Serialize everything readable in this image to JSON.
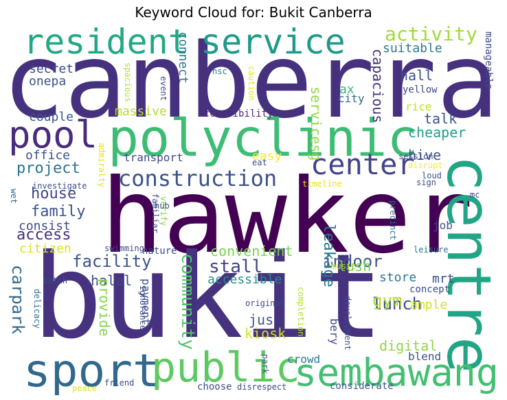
{
  "title": "Keyword Cloud for: Bukit Canberra",
  "chart_data": {
    "type": "wordcloud",
    "title": "Keyword Cloud for: Bukit Canberra",
    "words": [
      {
        "text": "canberra",
        "color": "#46317e"
      },
      {
        "text": "hawker",
        "color": "#440154"
      },
      {
        "text": "bukit",
        "color": "#46327e"
      },
      {
        "text": "centre",
        "color": "#21a585"
      },
      {
        "text": "polyclinic",
        "color": "#3dbc74"
      },
      {
        "text": "sport",
        "color": "#31688e"
      },
      {
        "text": "public",
        "color": "#5ec962"
      },
      {
        "text": "sembawang",
        "color": "#43bf71"
      },
      {
        "text": "resident",
        "color": "#22a884"
      },
      {
        "text": "service",
        "color": "#1f9a8a"
      },
      {
        "text": "pool",
        "color": "#472d7b"
      },
      {
        "text": "center",
        "color": "#414487"
      },
      {
        "text": "construction",
        "color": "#3b528b"
      },
      {
        "text": "activity",
        "color": "#a0da39"
      },
      {
        "text": "suitable",
        "color": "#2a788e"
      },
      {
        "text": "secret",
        "color": "#3e4a89"
      },
      {
        "text": "onepa",
        "color": "#3b528b"
      },
      {
        "text": "connect",
        "color": "#2a788e"
      },
      {
        "text": "capacious",
        "color": "#46327e"
      },
      {
        "text": "hall",
        "color": "#3b528b"
      },
      {
        "text": "massive",
        "color": "#b5de2b"
      },
      {
        "text": "accessibility",
        "color": "#482878"
      },
      {
        "text": "servicesg",
        "color": "#90d743"
      },
      {
        "text": "couple",
        "color": "#39568c"
      },
      {
        "text": "office",
        "color": "#3b528b"
      },
      {
        "text": "project",
        "color": "#2c728e"
      },
      {
        "text": "transport",
        "color": "#3e4a89"
      },
      {
        "text": "easy",
        "color": "#fde725"
      },
      {
        "text": "house",
        "color": "#414487"
      },
      {
        "text": "family",
        "color": "#3b528b"
      },
      {
        "text": "consist",
        "color": "#3e4a89"
      },
      {
        "text": "access",
        "color": "#472d7b"
      },
      {
        "text": "citizen",
        "color": "#d8e219"
      },
      {
        "text": "facility",
        "color": "#3b528b"
      },
      {
        "text": "convenient",
        "color": "#7ad151"
      },
      {
        "text": "stall",
        "color": "#414487"
      },
      {
        "text": "indoor",
        "color": "#3b528b"
      },
      {
        "text": "leakage",
        "color": "#2a788e"
      },
      {
        "text": "lush",
        "color": "#6ece58"
      },
      {
        "text": "lunch",
        "color": "#3e4a89"
      },
      {
        "text": "gym",
        "color": "#addc30"
      },
      {
        "text": "store",
        "color": "#2a788e"
      },
      {
        "text": "mrt",
        "color": "#3b528b"
      },
      {
        "text": "ample",
        "color": "#d2e21b"
      },
      {
        "text": "digital",
        "color": "#90d743"
      },
      {
        "text": "kiosk",
        "color": "#d2e21b"
      },
      {
        "text": "community",
        "color": "#50c46a"
      },
      {
        "text": "carpark",
        "color": "#31688e"
      },
      {
        "text": "halal",
        "color": "#3e4a89"
      },
      {
        "text": "payment",
        "color": "#3b528b"
      },
      {
        "text": "accessible",
        "color": "#21918c"
      },
      {
        "text": "provide",
        "color": "#84d44b"
      },
      {
        "text": "jus",
        "color": "#3b528b"
      },
      {
        "text": "bery",
        "color": "#3e4a89"
      },
      {
        "text": "crowd",
        "color": "#2a788e"
      },
      {
        "text": "blend",
        "color": "#3b528b"
      },
      {
        "text": "talk",
        "color": "#3b528b"
      },
      {
        "text": "cheaper",
        "color": "#1f9e89"
      },
      {
        "text": "hive",
        "color": "#3b528b"
      },
      {
        "text": "rice",
        "color": "#c2df23"
      },
      {
        "text": "ax",
        "color": "#35b779"
      },
      {
        "text": "city",
        "color": "#31688e"
      },
      {
        "text": "yellow",
        "color": "#3e4a89"
      },
      {
        "text": "manageable",
        "color": "#3e4a89"
      },
      {
        "text": "nsc",
        "color": "#2a788e"
      },
      {
        "text": "caution",
        "color": "#e5e419"
      },
      {
        "text": "event",
        "color": "#3e4a89"
      },
      {
        "text": "spacious",
        "color": "#b5de2b"
      },
      {
        "text": "admiralty",
        "color": "#e5e419"
      },
      {
        "text": "eat",
        "color": "#3e4a89"
      },
      {
        "text": "session",
        "color": "#3e4a89"
      },
      {
        "text": "disrupt",
        "color": "#fde725"
      },
      {
        "text": "loud",
        "color": "#3b528b"
      },
      {
        "text": "sign",
        "color": "#3e4a89"
      },
      {
        "text": "timeline",
        "color": "#e5e419"
      },
      {
        "text": "mc",
        "color": "#3e4a89"
      },
      {
        "text": "investigate",
        "color": "#3b528b"
      },
      {
        "text": "wet",
        "color": "#31688e"
      },
      {
        "text": "verify",
        "color": "#84d44b"
      },
      {
        "text": "familiar",
        "color": "#3e4a89"
      },
      {
        "text": "hub",
        "color": "#3e4a89"
      },
      {
        "text": "precinct",
        "color": "#31688e"
      },
      {
        "text": "job",
        "color": "#3b528b"
      },
      {
        "text": "swimming",
        "color": "#3e4a89"
      },
      {
        "text": "nature",
        "color": "#3e4a89"
      },
      {
        "text": "leisure",
        "color": "#2a788e"
      },
      {
        "text": "music",
        "color": "#b5de2b"
      },
      {
        "text": "concept",
        "color": "#3e4a89"
      },
      {
        "text": "patch",
        "color": "#3e4a89"
      },
      {
        "text": "delicacy",
        "color": "#2c728e"
      },
      {
        "text": "ignorance",
        "color": "#3e4a89"
      },
      {
        "text": "original",
        "color": "#3e4a89"
      },
      {
        "text": "completion",
        "color": "#b5de2b"
      },
      {
        "text": "development",
        "color": "#3e4a89"
      },
      {
        "text": "park",
        "color": "#3b528b"
      },
      {
        "text": "friend",
        "color": "#3e4a89"
      },
      {
        "text": "peace",
        "color": "#e5e419"
      },
      {
        "text": "choose",
        "color": "#3e4a89"
      },
      {
        "text": "disrespect",
        "color": "#3e4a89"
      },
      {
        "text": "considerate",
        "color": "#3b528b"
      }
    ]
  }
}
